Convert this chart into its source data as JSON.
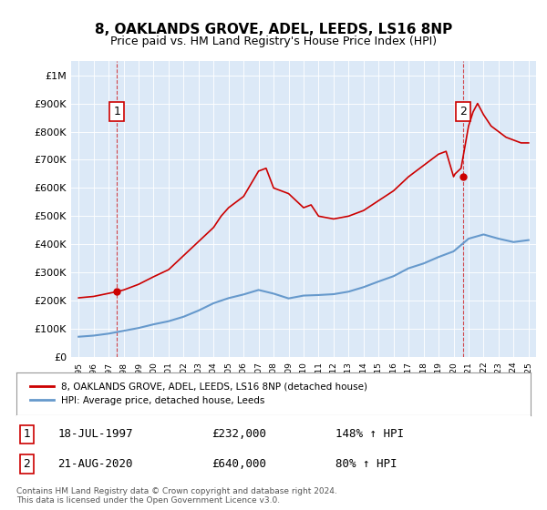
{
  "title": "8, OAKLANDS GROVE, ADEL, LEEDS, LS16 8NP",
  "subtitle": "Price paid vs. HM Land Registry's House Price Index (HPI)",
  "bg_color": "#dce9f7",
  "plot_bg_color": "#dce9f7",
  "red_line_color": "#cc0000",
  "blue_line_color": "#6699cc",
  "legend_label_red": "8, OAKLANDS GROVE, ADEL, LEEDS, LS16 8NP (detached house)",
  "legend_label_blue": "HPI: Average price, detached house, Leeds",
  "transaction1_date": "18-JUL-1997",
  "transaction1_price": 232000,
  "transaction1_hpi": "148% ↑ HPI",
  "transaction2_date": "21-AUG-2020",
  "transaction2_price": 640000,
  "transaction2_hpi": "80% ↑ HPI",
  "footer": "Contains HM Land Registry data © Crown copyright and database right 2024.\nThis data is licensed under the Open Government Licence v3.0.",
  "ylim": [
    0,
    1050000
  ],
  "yticks": [
    0,
    100000,
    200000,
    300000,
    400000,
    500000,
    600000,
    700000,
    800000,
    900000,
    1000000
  ],
  "ytick_labels": [
    "£0",
    "£100K",
    "£200K",
    "£300K",
    "£400K",
    "£500K",
    "£600K",
    "£700K",
    "£800K",
    "£900K",
    "£1M"
  ],
  "hpi_years": [
    1995,
    1996,
    1997,
    1998,
    1999,
    2000,
    2001,
    2002,
    2003,
    2004,
    2005,
    2006,
    2007,
    2008,
    2009,
    2010,
    2011,
    2012,
    2013,
    2014,
    2015,
    2016,
    2017,
    2018,
    2019,
    2020,
    2021,
    2022,
    2023,
    2024,
    2025
  ],
  "hpi_values": [
    72000,
    76000,
    83000,
    93000,
    103000,
    116000,
    127000,
    143000,
    165000,
    191000,
    209000,
    222000,
    238000,
    225000,
    208000,
    218000,
    220000,
    223000,
    232000,
    248000,
    268000,
    287000,
    315000,
    332000,
    355000,
    375000,
    420000,
    435000,
    420000,
    408000,
    415000
  ],
  "red_line_years": [
    1995,
    1996,
    1997.55,
    1998,
    1999,
    2000,
    2001,
    2002,
    2003,
    2004,
    2004.5,
    2005,
    2006,
    2007,
    2007.5,
    2008,
    2009,
    2010,
    2010.5,
    2011,
    2012,
    2013,
    2014,
    2015,
    2016,
    2017,
    2018,
    2019,
    2019.5,
    2020,
    2020.1,
    2020.5,
    2021,
    2021.3,
    2021.6,
    2022,
    2022.5,
    2023,
    2023.5,
    2024,
    2024.5,
    2025
  ],
  "red_line_values": [
    210000,
    215000,
    232000,
    238000,
    258000,
    285000,
    310000,
    360000,
    410000,
    460000,
    500000,
    530000,
    570000,
    660000,
    670000,
    600000,
    580000,
    530000,
    540000,
    500000,
    490000,
    500000,
    520000,
    555000,
    590000,
    640000,
    680000,
    720000,
    730000,
    640000,
    650000,
    670000,
    820000,
    870000,
    900000,
    860000,
    820000,
    800000,
    780000,
    770000,
    760000,
    760000
  ]
}
